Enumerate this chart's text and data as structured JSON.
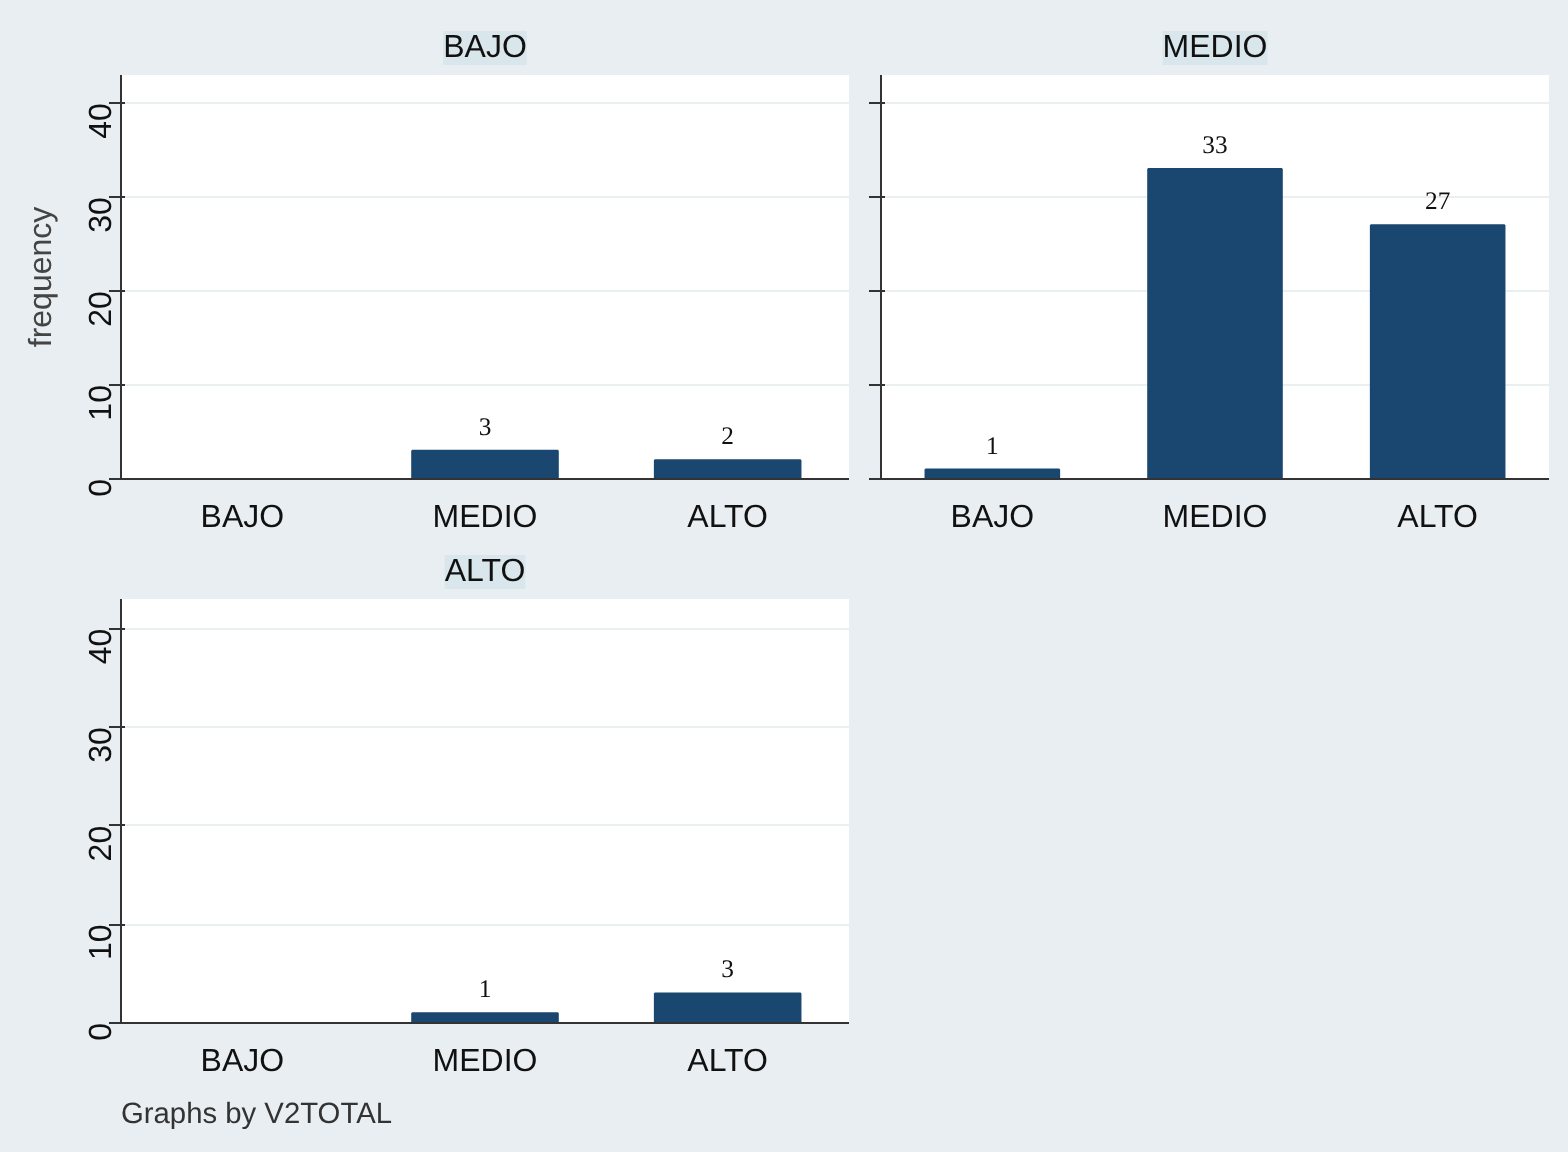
{
  "chart_data": [
    {
      "type": "bar",
      "title": "BAJO",
      "ylabel": "frequency",
      "categories": [
        "BAJO",
        "MEDIO",
        "ALTO"
      ],
      "values": [
        0,
        3,
        2
      ],
      "value_labels": [
        null,
        "3",
        "2"
      ],
      "color": "#1a476f",
      "ylim": [
        0,
        43
      ],
      "yticks": [
        0,
        10,
        20,
        30,
        40
      ],
      "grid": "y"
    },
    {
      "type": "bar",
      "title": "MEDIO",
      "categories": [
        "BAJO",
        "MEDIO",
        "ALTO"
      ],
      "values": [
        1,
        33,
        27
      ],
      "value_labels": [
        "1",
        "33",
        "27"
      ],
      "color": "#1a476f",
      "ylim": [
        0,
        43
      ],
      "yticks": [
        0,
        10,
        20,
        30,
        40
      ],
      "grid": "y",
      "tick_labels": "x"
    },
    {
      "type": "bar",
      "title": "ALTO",
      "categories": [
        "BAJO",
        "MEDIO",
        "ALTO"
      ],
      "values": [
        0,
        1,
        3
      ],
      "value_labels": [
        null,
        "1",
        "3"
      ],
      "color": "#1a476f",
      "ylim": [
        0,
        43
      ],
      "yticks": [
        0,
        10,
        20,
        30,
        40
      ],
      "grid": "y",
      "annotations": [
        "Graphs by V2TOTAL"
      ]
    }
  ]
}
